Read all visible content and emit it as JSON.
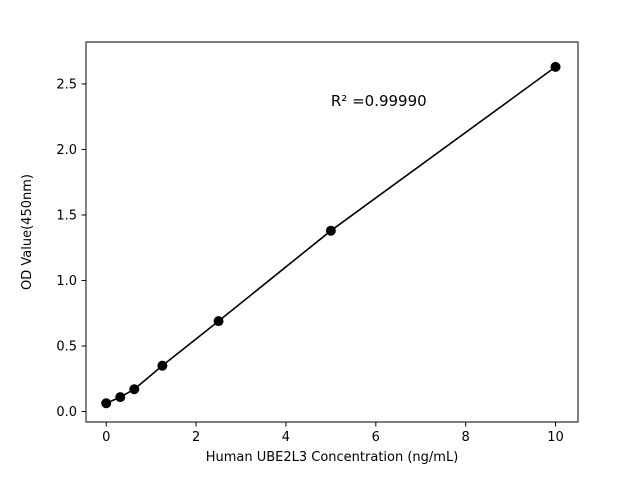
{
  "figure": {
    "background": "#ffffff"
  },
  "chart_data": {
    "type": "scatter",
    "x": [
      0,
      0.3125,
      0.625,
      1.25,
      2.5,
      5,
      10
    ],
    "y": [
      0.063,
      0.11,
      0.17,
      0.35,
      0.69,
      1.38,
      2.63
    ],
    "title": "",
    "xlabel": "Human UBE2L3 Concentration (ng/mL)",
    "ylabel": "OD Value(450nm)",
    "annotation": {
      "text": "R² =0.99990",
      "x": 5.0,
      "y": 2.33
    },
    "xlim": [
      -0.45,
      10.5
    ],
    "ylim": [
      -0.08,
      2.82
    ],
    "xticks": [
      0,
      2,
      4,
      6,
      8,
      10
    ],
    "xtick_labels": [
      "0",
      "2",
      "4",
      "6",
      "8",
      "10"
    ],
    "yticks": [
      0.0,
      0.5,
      1.0,
      1.5,
      2.0,
      2.5
    ],
    "ytick_labels": [
      "0.0",
      "0.5",
      "1.0",
      "1.5",
      "2.0",
      "2.5"
    ],
    "grid": false,
    "line": true,
    "line_color": "#000000",
    "marker_color": "#000000",
    "legend": null
  }
}
